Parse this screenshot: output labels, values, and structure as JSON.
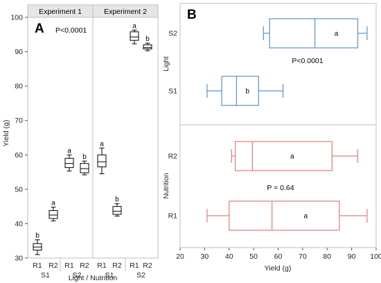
{
  "chart_data": [
    {
      "type": "box",
      "panel_label": "A",
      "ylabel": "Yield (g)",
      "xlabel": "Light / Nutrition",
      "ylim": [
        30,
        100
      ],
      "yticks": [
        30,
        40,
        50,
        60,
        70,
        80,
        90,
        100
      ],
      "grid": false,
      "facets": [
        "Experiment 1",
        "Experiment 2"
      ],
      "annotation": "P<0.0001",
      "groups": [
        {
          "facet": 0,
          "light": "S1",
          "nutrition": "R1",
          "min": 31,
          "q1": 32.3,
          "median": 33.2,
          "q3": 34.2,
          "max": 35.3,
          "letter": "b"
        },
        {
          "facet": 0,
          "light": "S1",
          "nutrition": "R2",
          "min": 40.8,
          "q1": 41.5,
          "median": 42.5,
          "q3": 43.8,
          "max": 44.8,
          "letter": "a"
        },
        {
          "facet": 0,
          "light": "S2",
          "nutrition": "R1",
          "min": 55.3,
          "q1": 56.3,
          "median": 57.5,
          "q3": 59,
          "max": 60,
          "letter": "a"
        },
        {
          "facet": 0,
          "light": "S2",
          "nutrition": "R2",
          "min": 54.2,
          "q1": 54.8,
          "median": 56,
          "q3": 57.5,
          "max": 58.2,
          "letter": "b"
        },
        {
          "facet": 1,
          "light": "S1",
          "nutrition": "R1",
          "min": 54.5,
          "q1": 56.5,
          "median": 58,
          "q3": 60,
          "max": 62,
          "letter": "a"
        },
        {
          "facet": 1,
          "light": "S1",
          "nutrition": "R2",
          "min": 42.2,
          "q1": 42.7,
          "median": 43.6,
          "q3": 45,
          "max": 45.8,
          "letter": "b"
        },
        {
          "facet": 1,
          "light": "S2",
          "nutrition": "R1",
          "min": 92.3,
          "q1": 93.3,
          "median": 94.3,
          "q3": 95.8,
          "max": 96.3,
          "letter": "a"
        },
        {
          "facet": 1,
          "light": "S2",
          "nutrition": "R2",
          "min": 90.3,
          "q1": 90.8,
          "median": 91.2,
          "q3": 92,
          "max": 92.5,
          "letter": "b"
        }
      ]
    },
    {
      "type": "box",
      "orientation": "horizontal",
      "panel_label": "B",
      "xlabel": "Yield (g)",
      "xlim": [
        20,
        100
      ],
      "xticks": [
        20,
        30,
        40,
        50,
        60,
        70,
        80,
        90,
        100
      ],
      "sections": [
        {
          "title": "Light",
          "color": "#5b8fd0",
          "annotation": "P<0.0001",
          "boxes": [
            {
              "label": "S2",
              "min": 54,
              "q1": 56.5,
              "median": 75,
              "q3": 92.5,
              "max": 96.3,
              "letter": "a"
            },
            {
              "label": "S1",
              "min": 31,
              "q1": 37,
              "median": 43,
              "q3": 52,
              "max": 62,
              "letter": "b"
            }
          ]
        },
        {
          "title": "Nutrition",
          "color": "#e07a7a",
          "annotation": "P = 0.64",
          "boxes": [
            {
              "label": "R2",
              "min": 41,
              "q1": 42.5,
              "median": 49.5,
              "q3": 82,
              "max": 92.5,
              "letter": "a"
            },
            {
              "label": "R1",
              "min": 31,
              "q1": 40,
              "median": 57.5,
              "q3": 85,
              "max": 96.3,
              "letter": "a"
            }
          ]
        }
      ]
    }
  ]
}
